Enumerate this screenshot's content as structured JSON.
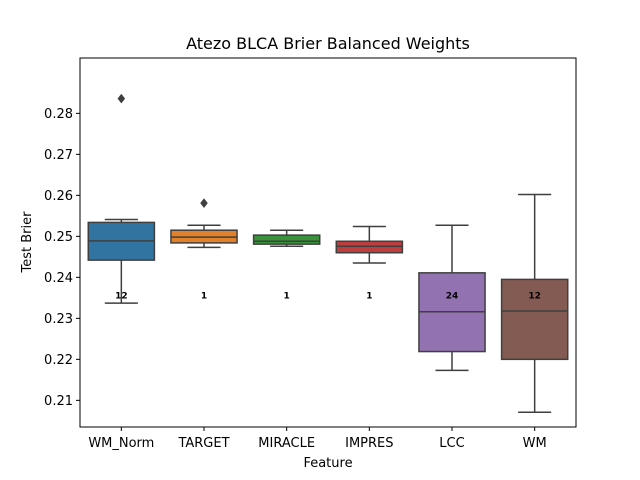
{
  "chart_data": {
    "type": "box",
    "title": "Atezo BLCA Brier Balanced Weights",
    "xlabel": "Feature",
    "ylabel": "Test Brier",
    "ylim": [
      0.2035,
      0.2935
    ],
    "yticks": [
      "0.21",
      "0.22",
      "0.23",
      "0.24",
      "0.25",
      "0.26",
      "0.27",
      "0.28"
    ],
    "ytick_values": [
      0.21,
      0.22,
      0.23,
      0.24,
      0.25,
      0.26,
      0.27,
      0.28
    ],
    "categories": [
      "WM_Norm",
      "TARGET",
      "MIRACLE",
      "IMPRES",
      "LCC",
      "WM"
    ],
    "boxes": [
      {
        "name": "WM_Norm",
        "color": "#3274a1",
        "whislo": 0.2337,
        "q1": 0.2442,
        "med": 0.2489,
        "q3": 0.2534,
        "whishi": 0.2541,
        "fliers": [
          0.2836
        ],
        "count_label": "12"
      },
      {
        "name": "TARGET",
        "color": "#e1812c",
        "whislo": 0.2473,
        "q1": 0.2484,
        "med": 0.2498,
        "q3": 0.2515,
        "whishi": 0.2527,
        "fliers": [
          0.2581
        ],
        "count_label": "1"
      },
      {
        "name": "MIRACLE",
        "color": "#3a923a",
        "whislo": 0.2476,
        "q1": 0.2481,
        "med": 0.2488,
        "q3": 0.2503,
        "whishi": 0.2515,
        "fliers": [],
        "count_label": "1"
      },
      {
        "name": "IMPRES",
        "color": "#c03d3e",
        "whislo": 0.2435,
        "q1": 0.246,
        "med": 0.2476,
        "q3": 0.2488,
        "whishi": 0.2524,
        "fliers": [],
        "count_label": "1"
      },
      {
        "name": "LCC",
        "color": "#9372b2",
        "whislo": 0.2173,
        "q1": 0.2219,
        "med": 0.2316,
        "q3": 0.2411,
        "whishi": 0.2527,
        "fliers": [],
        "count_label": "24"
      },
      {
        "name": "WM",
        "color": "#845b53",
        "whislo": 0.2071,
        "q1": 0.22,
        "med": 0.2318,
        "q3": 0.2395,
        "whishi": 0.2602,
        "fliers": [],
        "count_label": "12"
      }
    ],
    "count_label_y": 0.2356,
    "grid": false,
    "legend": "none"
  }
}
